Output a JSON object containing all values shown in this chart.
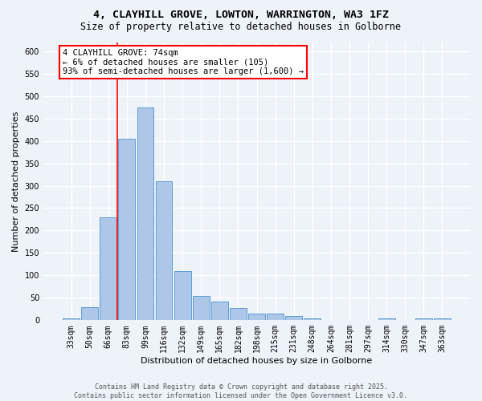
{
  "title": "4, CLAYHILL GROVE, LOWTON, WARRINGTON, WA3 1FZ",
  "subtitle": "Size of property relative to detached houses in Golborne",
  "xlabel": "Distribution of detached houses by size in Golborne",
  "ylabel": "Number of detached properties",
  "bar_labels": [
    "33sqm",
    "50sqm",
    "66sqm",
    "83sqm",
    "99sqm",
    "116sqm",
    "132sqm",
    "149sqm",
    "165sqm",
    "182sqm",
    "198sqm",
    "215sqm",
    "231sqm",
    "248sqm",
    "264sqm",
    "281sqm",
    "297sqm",
    "314sqm",
    "330sqm",
    "347sqm",
    "363sqm"
  ],
  "bar_values": [
    5,
    30,
    230,
    405,
    475,
    310,
    110,
    55,
    42,
    27,
    15,
    15,
    10,
    4,
    0,
    0,
    0,
    4,
    0,
    4,
    4
  ],
  "bar_color": "#aec6e8",
  "bar_edge_color": "#5a9fd4",
  "annotation_text": "4 CLAYHILL GROVE: 74sqm\n← 6% of detached houses are smaller (105)\n93% of semi-detached houses are larger (1,600) →",
  "vline_x": 2.5,
  "vline_color": "red",
  "ylim": [
    0,
    620
  ],
  "yticks": [
    0,
    50,
    100,
    150,
    200,
    250,
    300,
    350,
    400,
    450,
    500,
    550,
    600
  ],
  "background_color": "#eef2f9",
  "grid_color": "#ffffff",
  "footer": "Contains HM Land Registry data © Crown copyright and database right 2025.\nContains public sector information licensed under the Open Government Licence v3.0.",
  "title_fontsize": 9.5,
  "subtitle_fontsize": 8.5,
  "ylabel_fontsize": 8,
  "xlabel_fontsize": 8,
  "tick_fontsize": 7,
  "annotation_fontsize": 7.5,
  "footer_fontsize": 6
}
